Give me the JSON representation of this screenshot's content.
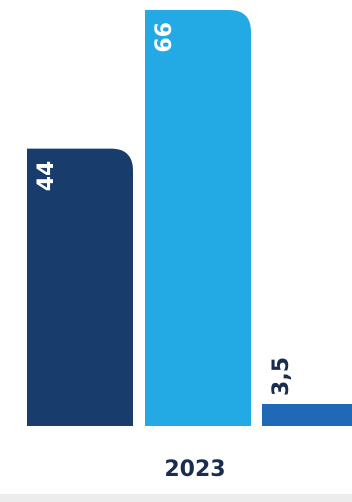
{
  "chart_data": {
    "type": "bar",
    "categories": [
      "2023"
    ],
    "series": [
      {
        "values": [
          44
        ],
        "color": "#183d6d",
        "label_color": "#ffffff"
      },
      {
        "values": [
          66
        ],
        "color": "#23aae4",
        "label_color": "#ffffff"
      },
      {
        "values": [
          3.5
        ],
        "color": "#1f69b7",
        "label_color": "#1a2d4f"
      }
    ],
    "value_labels": [
      "44",
      "66",
      "3,5"
    ],
    "title": "",
    "xlabel": "",
    "ylabel": "",
    "ylim": [
      0,
      70
    ],
    "grid": false,
    "legend": "none"
  }
}
